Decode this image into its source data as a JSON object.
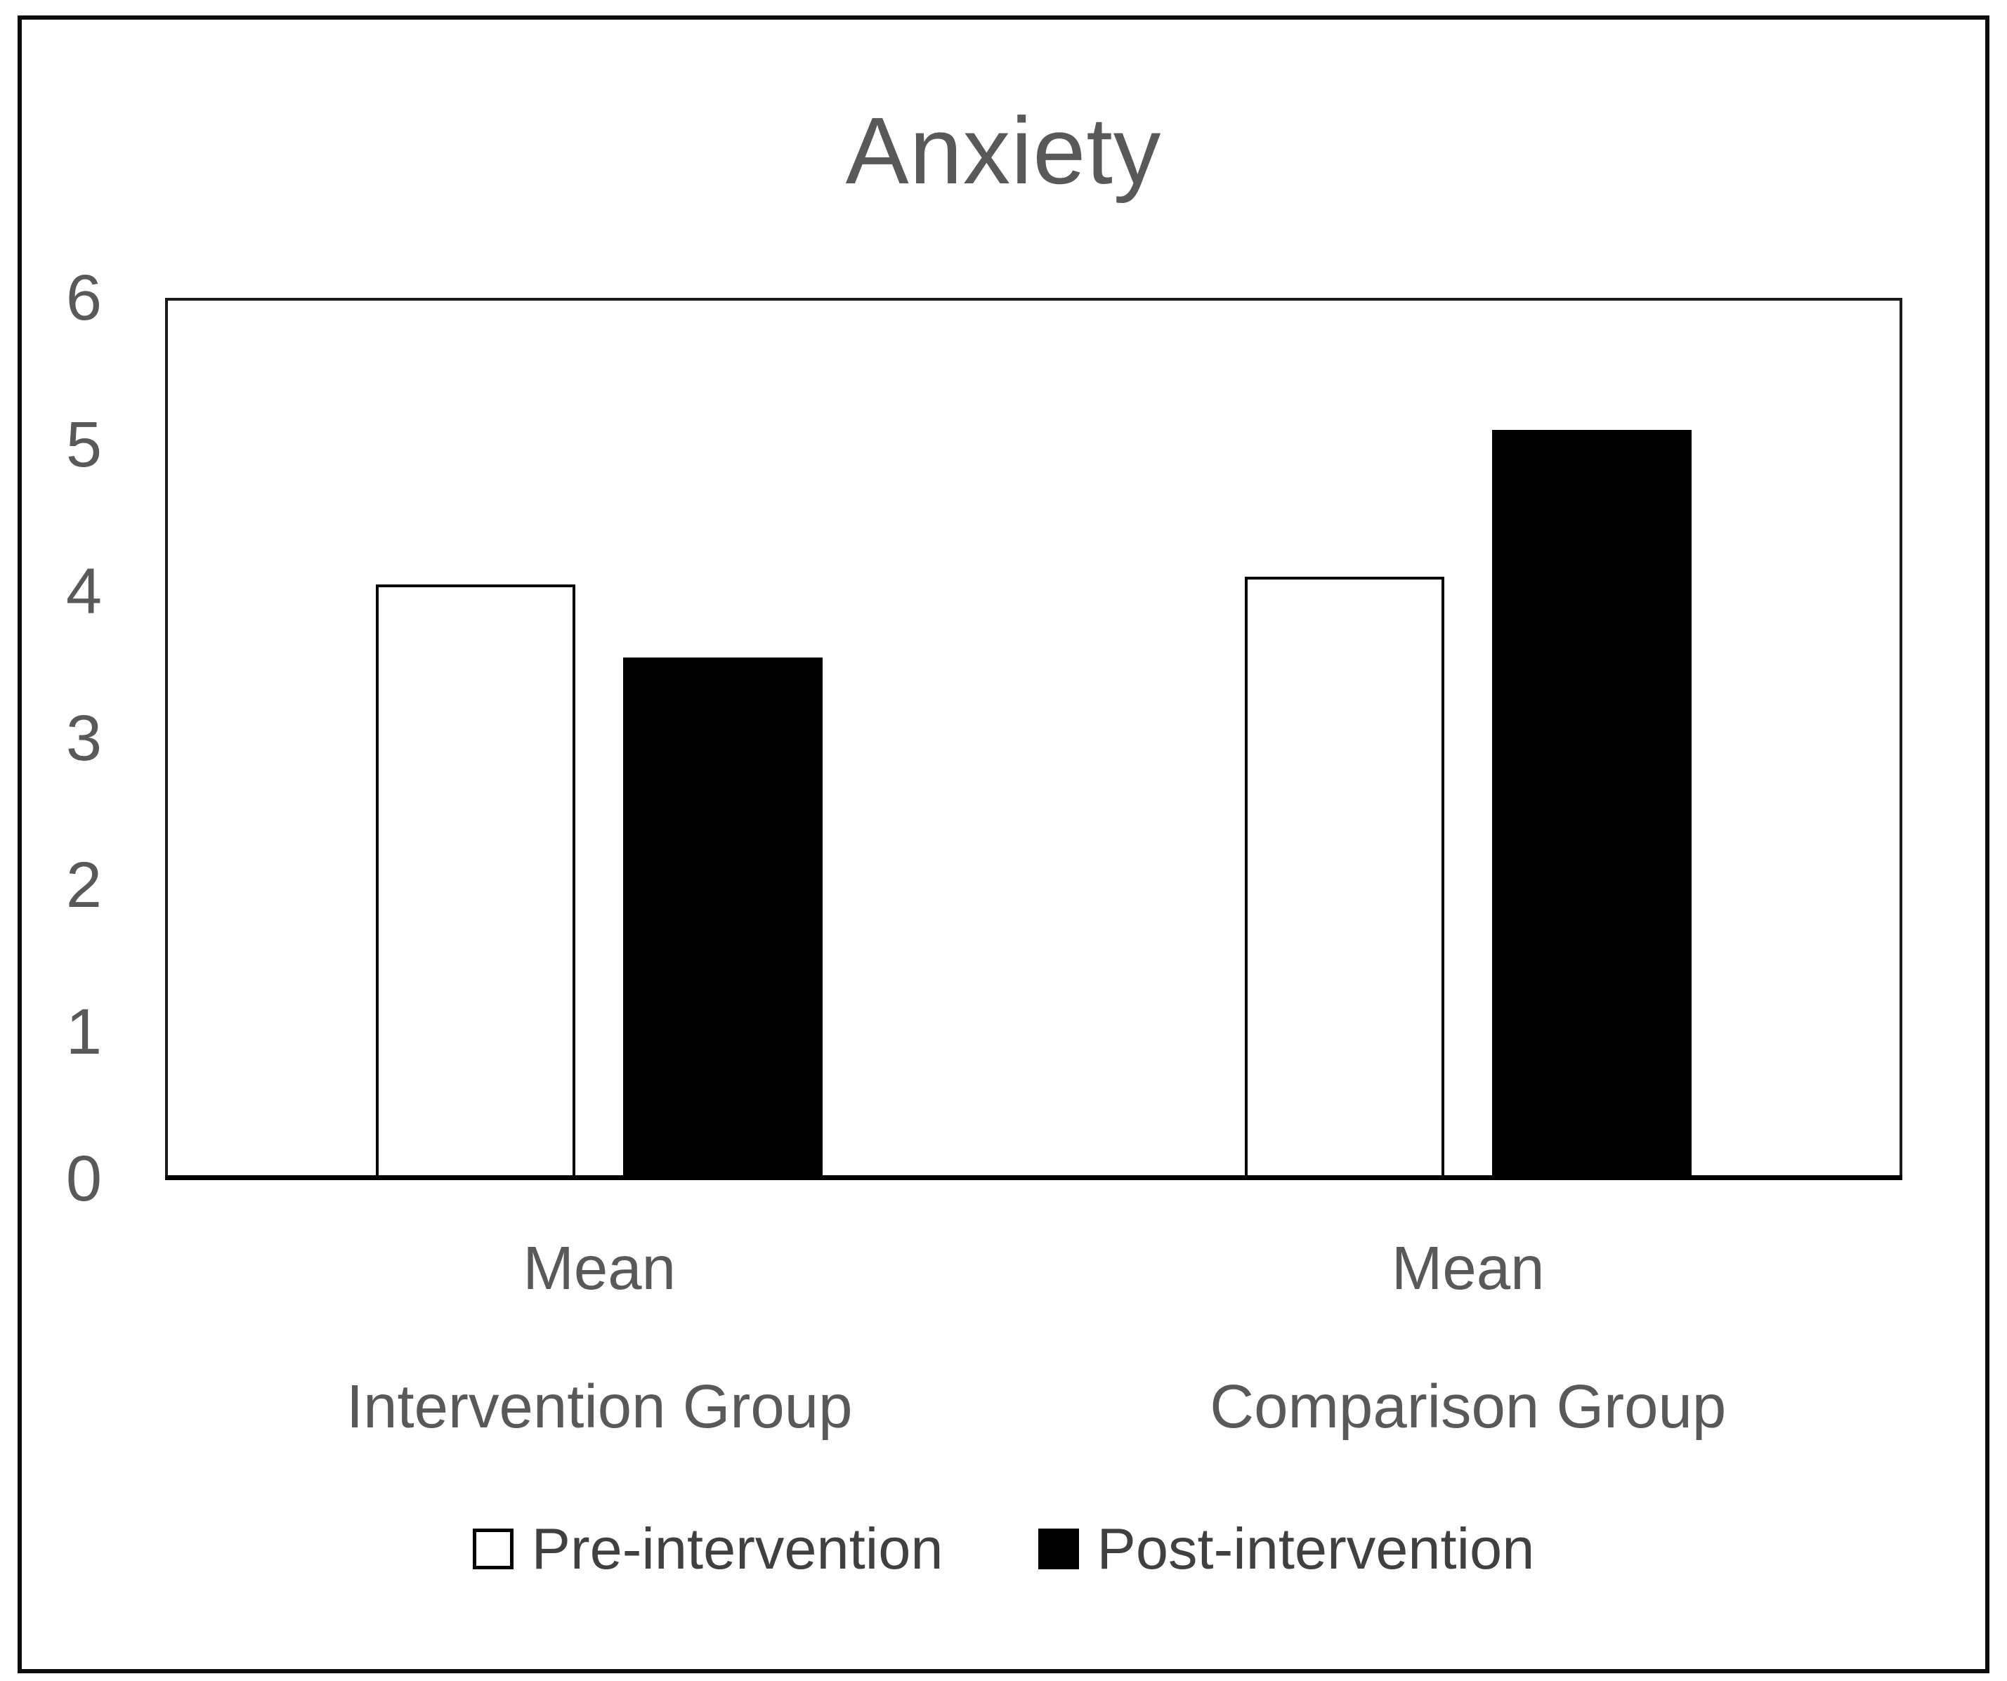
{
  "chart_data": {
    "type": "bar",
    "title": "Anxiety",
    "categories": [
      "Intervention Group",
      "Comparison Group"
    ],
    "category_sub_label": "Mean",
    "series": [
      {
        "name": "Pre-intervention",
        "fill": "#ffffff",
        "border": "#000000",
        "values": [
          4.05,
          4.1
        ]
      },
      {
        "name": "Post-intervention",
        "fill": "#000000",
        "border": "#000000",
        "values": [
          3.55,
          5.1
        ]
      }
    ],
    "xlabel": "",
    "ylabel": "",
    "ylim": [
      0,
      6
    ],
    "yticks": [
      "6",
      "5",
      "4",
      "3",
      "2",
      "1",
      "0"
    ],
    "grid": false,
    "legend_position": "bottom",
    "colors": {
      "title_text": "#595959",
      "axis_text": "#595959",
      "category_text": "#595959",
      "legend_text": "#404040",
      "plot_border": "#1a1a1a",
      "axis_line": "#000000",
      "figure_border": "#0d0d0d",
      "background": "#ffffff"
    }
  }
}
